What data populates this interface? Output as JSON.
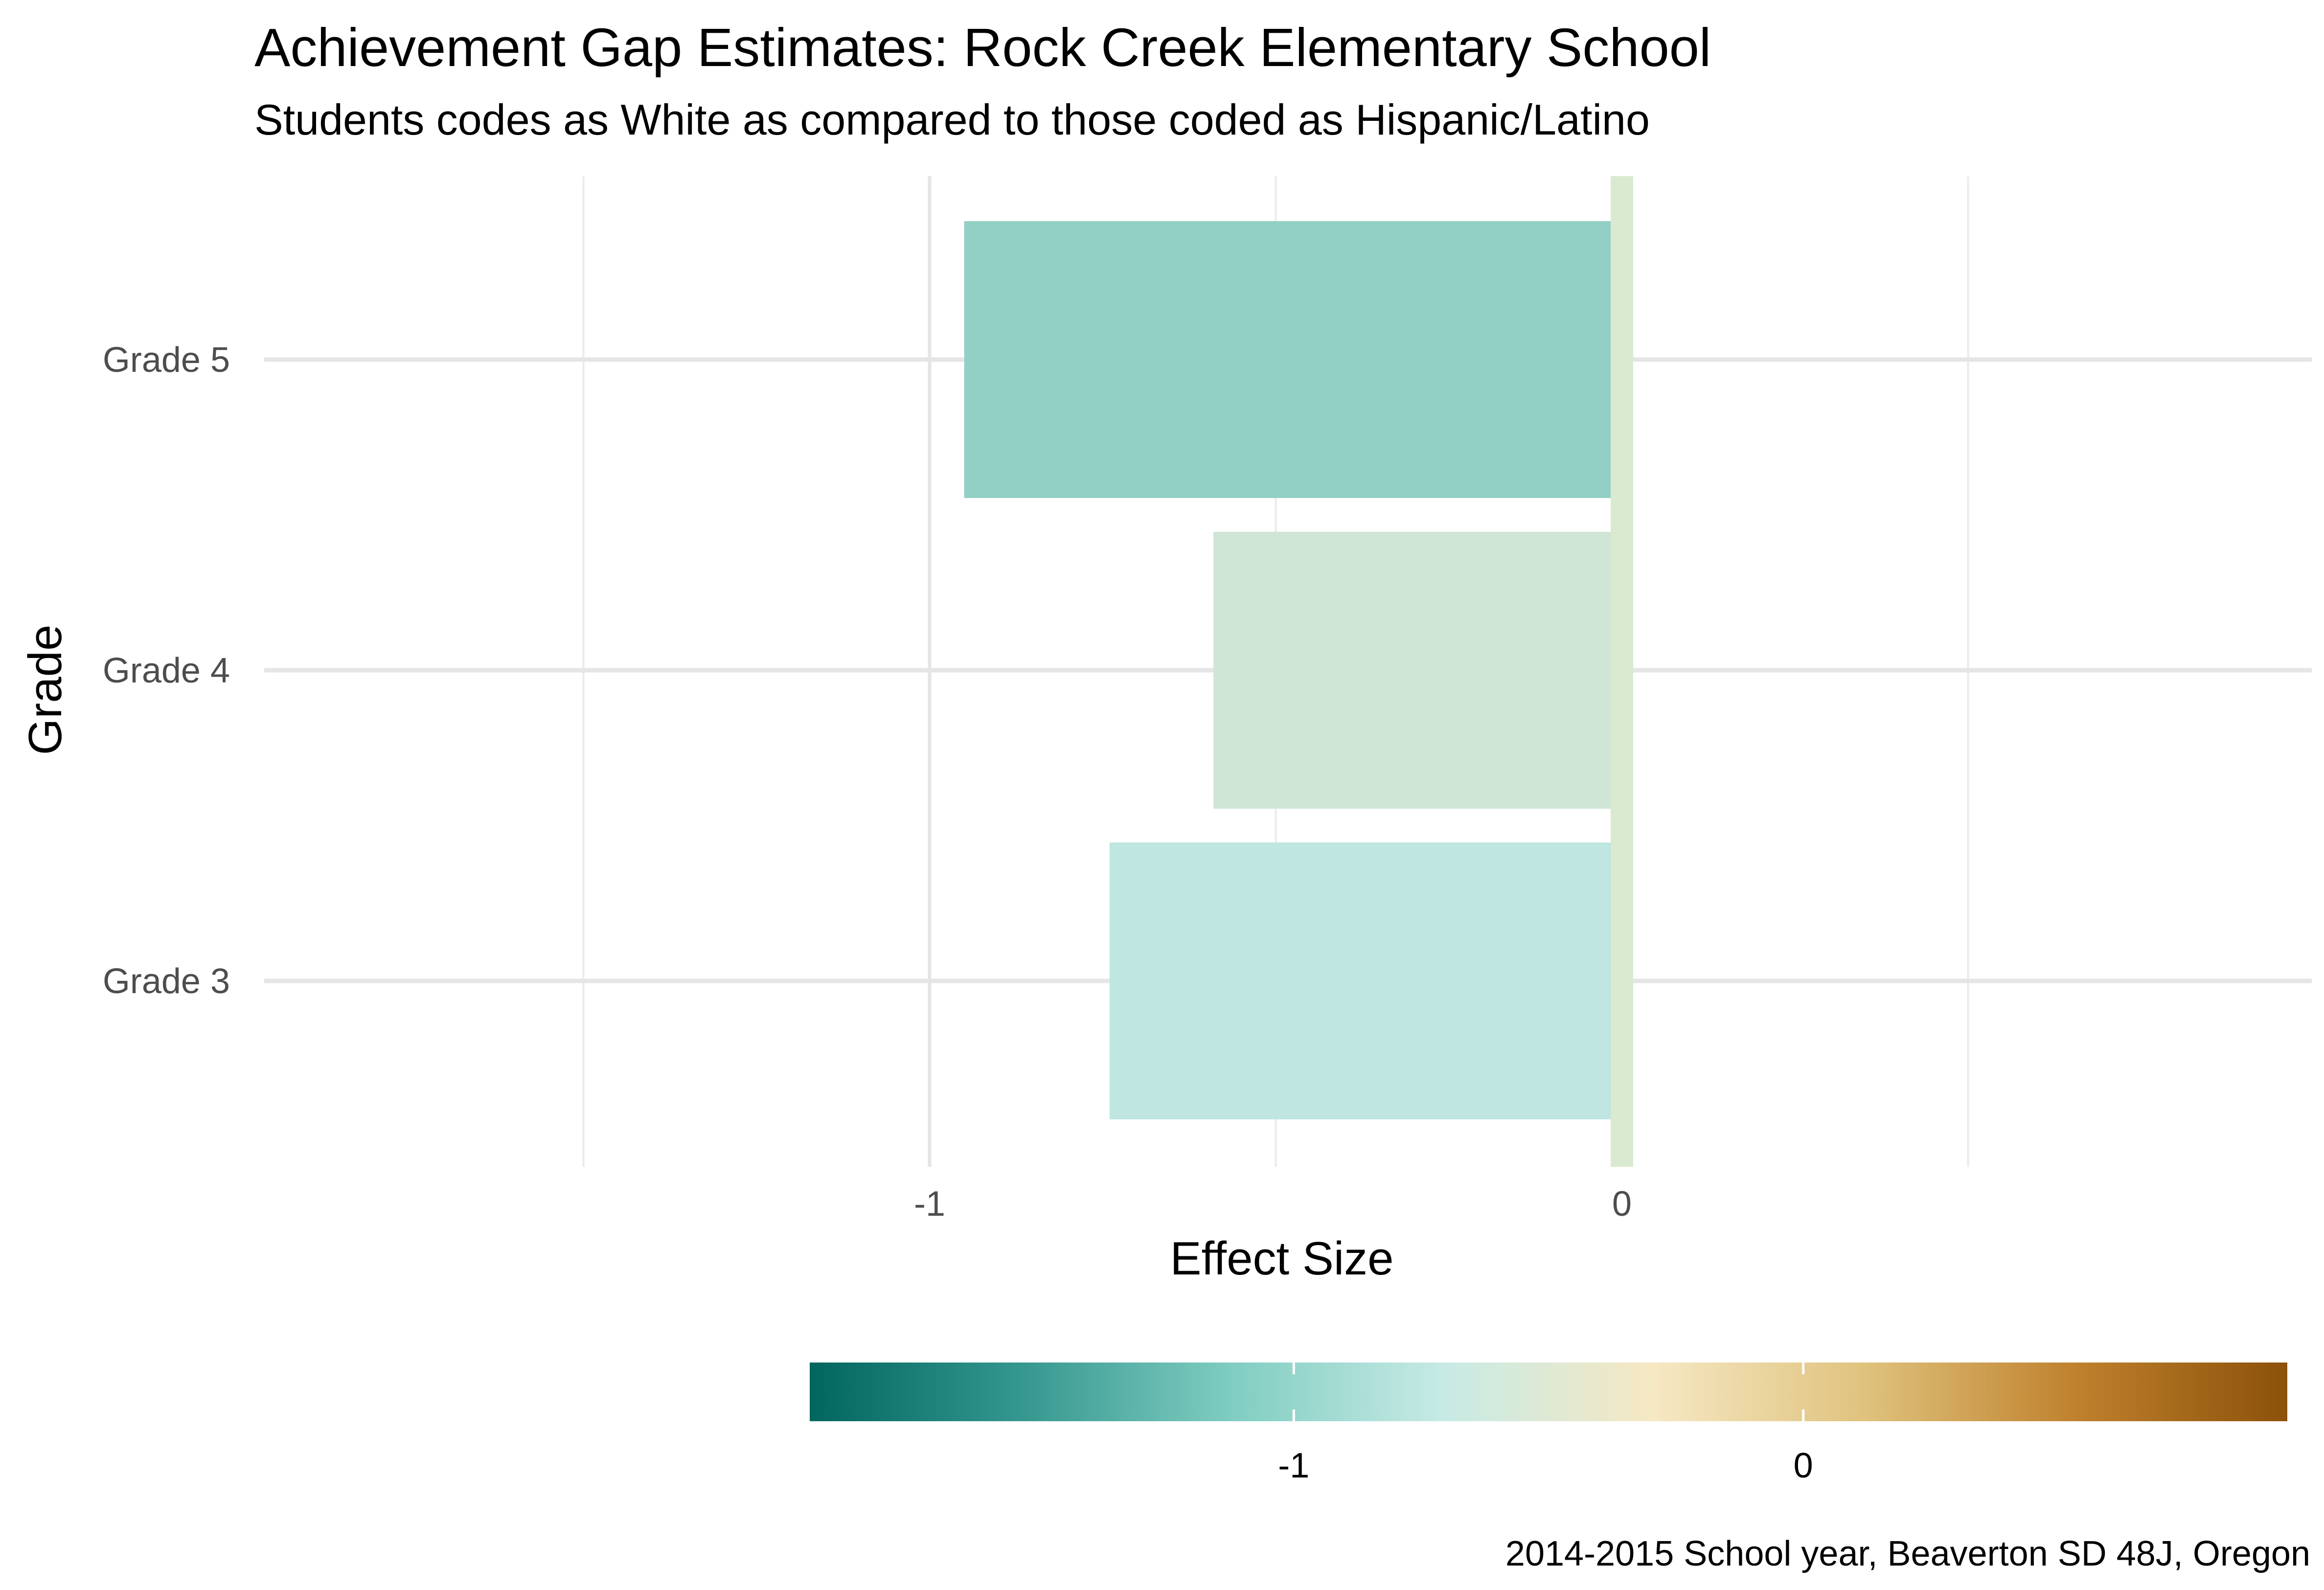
{
  "chart_data": {
    "type": "bar",
    "orientation": "horizontal",
    "title": "Achievement Gap Estimates: Rock Creek Elementary School",
    "subtitle": "Students codes as White as compared to those coded as Hispanic/Latino",
    "xlabel": "Effect Size",
    "ylabel": "Grade",
    "caption": "2014-2015 School year, Beaverton SD 48J, Oregon",
    "categories": [
      "Grade 3",
      "Grade 4",
      "Grade 5"
    ],
    "values": [
      -0.74,
      -0.59,
      -0.95
    ],
    "x_ticks": [
      -1,
      0
    ],
    "x_tick_labels": [
      "-1",
      "0"
    ],
    "xlim": [
      -1.5,
      1.0
    ],
    "reference_line": 0,
    "grid": true,
    "legend": {
      "type": "colorbar",
      "placement": "bottom",
      "range": [
        -1.95,
        0.95
      ],
      "ticks": [
        -1,
        0
      ],
      "tick_labels": [
        "-1",
        "0"
      ],
      "colors": [
        "#01665e",
        "#35978f",
        "#80cdc1",
        "#c7eae5",
        "#f6e8c3",
        "#dfc27d",
        "#bf812d",
        "#8c510a"
      ]
    },
    "bar_colors": [
      "#bfe6e0",
      "#cfe6d6",
      "#92cfc4"
    ],
    "reference_color": "#d9ead1"
  }
}
